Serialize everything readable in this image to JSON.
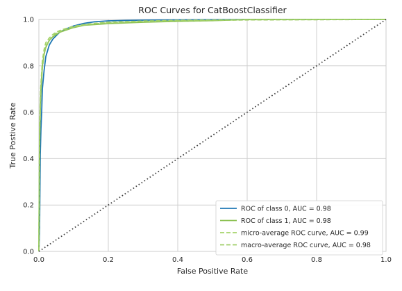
{
  "chart_data": {
    "type": "line",
    "title": "ROC Curves for CatBoostClassifier",
    "xlabel": "False Positive Rate",
    "ylabel": "True Postive Rate",
    "xlim": [
      0.0,
      1.0
    ],
    "ylim": [
      0.0,
      1.0
    ],
    "xticks": [
      "0.0",
      "0.2",
      "0.4",
      "0.6",
      "0.8",
      "1.0"
    ],
    "yticks": [
      "0.0",
      "0.2",
      "0.4",
      "0.6",
      "0.8",
      "1.0"
    ],
    "grid": true,
    "legend_position": "lower-right",
    "series": [
      {
        "name": "ROC of class 0, AUC = 0.98",
        "color": "#1f77b4",
        "style": "solid",
        "x": [
          0.0,
          0.002,
          0.004,
          0.006,
          0.008,
          0.01,
          0.015,
          0.02,
          0.03,
          0.04,
          0.05,
          0.06,
          0.08,
          0.1,
          0.13,
          0.16,
          0.2,
          0.25,
          0.3,
          0.4,
          0.5,
          0.6,
          1.0
        ],
        "y": [
          0.0,
          0.1,
          0.42,
          0.53,
          0.6,
          0.7,
          0.78,
          0.84,
          0.89,
          0.915,
          0.93,
          0.945,
          0.96,
          0.972,
          0.983,
          0.99,
          0.994,
          0.996,
          0.997,
          0.998,
          0.999,
          1.0,
          1.0
        ]
      },
      {
        "name": "ROC of class 1, AUC = 0.98",
        "color": "#8cc152",
        "style": "solid",
        "x": [
          0.0,
          0.002,
          0.004,
          0.006,
          0.008,
          0.01,
          0.015,
          0.02,
          0.03,
          0.04,
          0.05,
          0.06,
          0.08,
          0.1,
          0.13,
          0.16,
          0.2,
          0.25,
          0.3,
          0.4,
          0.5,
          0.6,
          1.0
        ],
        "y": [
          0.0,
          0.45,
          0.62,
          0.7,
          0.75,
          0.8,
          0.85,
          0.88,
          0.91,
          0.925,
          0.935,
          0.945,
          0.955,
          0.965,
          0.975,
          0.978,
          0.982,
          0.985,
          0.988,
          0.992,
          0.995,
          1.0,
          1.0
        ]
      },
      {
        "name": "micro-average ROC curve, AUC = 0.99",
        "color": "#a5d46a",
        "style": "dashed",
        "x": [
          0.0,
          0.002,
          0.005,
          0.01,
          0.015,
          0.02,
          0.03,
          0.04,
          0.05,
          0.06,
          0.08,
          0.1,
          0.13,
          0.16,
          0.2,
          0.3,
          0.4,
          0.6,
          1.0
        ],
        "y": [
          0.0,
          0.55,
          0.7,
          0.82,
          0.87,
          0.9,
          0.92,
          0.935,
          0.945,
          0.952,
          0.962,
          0.97,
          0.978,
          0.983,
          0.988,
          0.993,
          0.996,
          0.999,
          1.0
        ]
      },
      {
        "name": "macro-average ROC curve, AUC = 0.98",
        "color": "#9fcd66",
        "style": "dashed",
        "x": [
          0.0,
          0.002,
          0.005,
          0.01,
          0.015,
          0.02,
          0.03,
          0.04,
          0.05,
          0.06,
          0.08,
          0.1,
          0.13,
          0.16,
          0.2,
          0.3,
          0.4,
          0.6,
          1.0
        ],
        "y": [
          0.0,
          0.5,
          0.66,
          0.79,
          0.85,
          0.885,
          0.91,
          0.928,
          0.94,
          0.948,
          0.958,
          0.967,
          0.976,
          0.981,
          0.986,
          0.991,
          0.994,
          0.998,
          1.0
        ]
      },
      {
        "name": "",
        "color": "#404040",
        "style": "dotted",
        "x": [
          0.0,
          1.0
        ],
        "y": [
          0.0,
          1.0
        ]
      }
    ]
  }
}
